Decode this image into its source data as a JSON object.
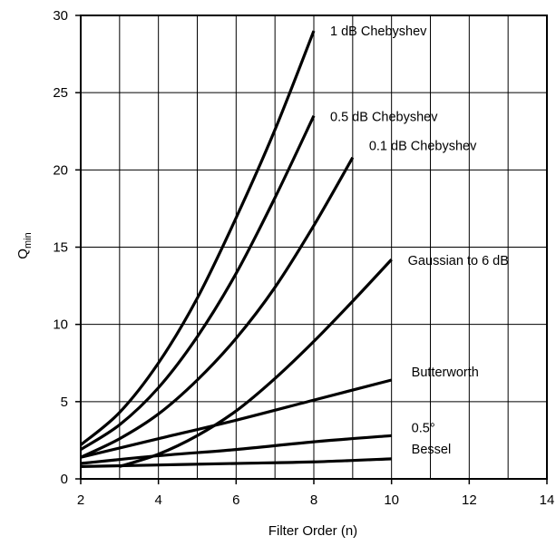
{
  "chart_data": {
    "type": "line",
    "title": "",
    "xlabel": "Filter Order (n)",
    "ylabel_main": "Q",
    "ylabel_sub": "min",
    "xlim": [
      2,
      14
    ],
    "ylim": [
      0,
      30
    ],
    "x_ticks": [
      2,
      4,
      6,
      8,
      10,
      12,
      14
    ],
    "x_tick_labels": [
      "2",
      "4",
      "6",
      "8",
      "10",
      "12",
      "14"
    ],
    "x_grid_step": 1,
    "y_ticks": [
      0,
      5,
      10,
      15,
      20,
      25,
      30
    ],
    "y_tick_labels": [
      "0",
      "5",
      "10",
      "15",
      "20",
      "25",
      "30"
    ],
    "grid": true,
    "legend": "none",
    "series": [
      {
        "name": "1 dB Chebyshev",
        "x": [
          2,
          3,
          4,
          5,
          6,
          7,
          8
        ],
        "y": [
          2.2,
          4.3,
          7.5,
          11.7,
          16.9,
          22.6,
          29.0
        ]
      },
      {
        "name": "0.5 dB Chebyshev",
        "x": [
          2,
          3,
          4,
          5,
          6,
          7,
          8
        ],
        "y": [
          1.9,
          3.5,
          5.9,
          9.2,
          13.3,
          18.2,
          23.5
        ]
      },
      {
        "name": "0.1 dB Chebyshev",
        "x": [
          2,
          3,
          4,
          5,
          6,
          7,
          8,
          9
        ],
        "y": [
          1.4,
          2.6,
          4.2,
          6.4,
          9.1,
          12.4,
          16.4,
          20.8
        ]
      },
      {
        "name": "Gaussian to 6 dB",
        "x": [
          3,
          4,
          5,
          6,
          7,
          8,
          9,
          10
        ],
        "y": [
          0.8,
          1.6,
          2.8,
          4.4,
          6.5,
          8.9,
          11.5,
          14.2
        ]
      },
      {
        "name": "Butterworth",
        "x": [
          2,
          4,
          6,
          8,
          10
        ],
        "y": [
          1.4,
          2.6,
          3.8,
          5.1,
          6.4
        ]
      },
      {
        "name": "0.5°",
        "x": [
          2,
          4,
          6,
          8,
          10
        ],
        "y": [
          1.0,
          1.5,
          1.9,
          2.4,
          2.8
        ]
      },
      {
        "name": "Bessel",
        "x": [
          2,
          4,
          6,
          8,
          10
        ],
        "y": [
          0.8,
          0.9,
          1.0,
          1.1,
          1.3
        ]
      }
    ]
  }
}
